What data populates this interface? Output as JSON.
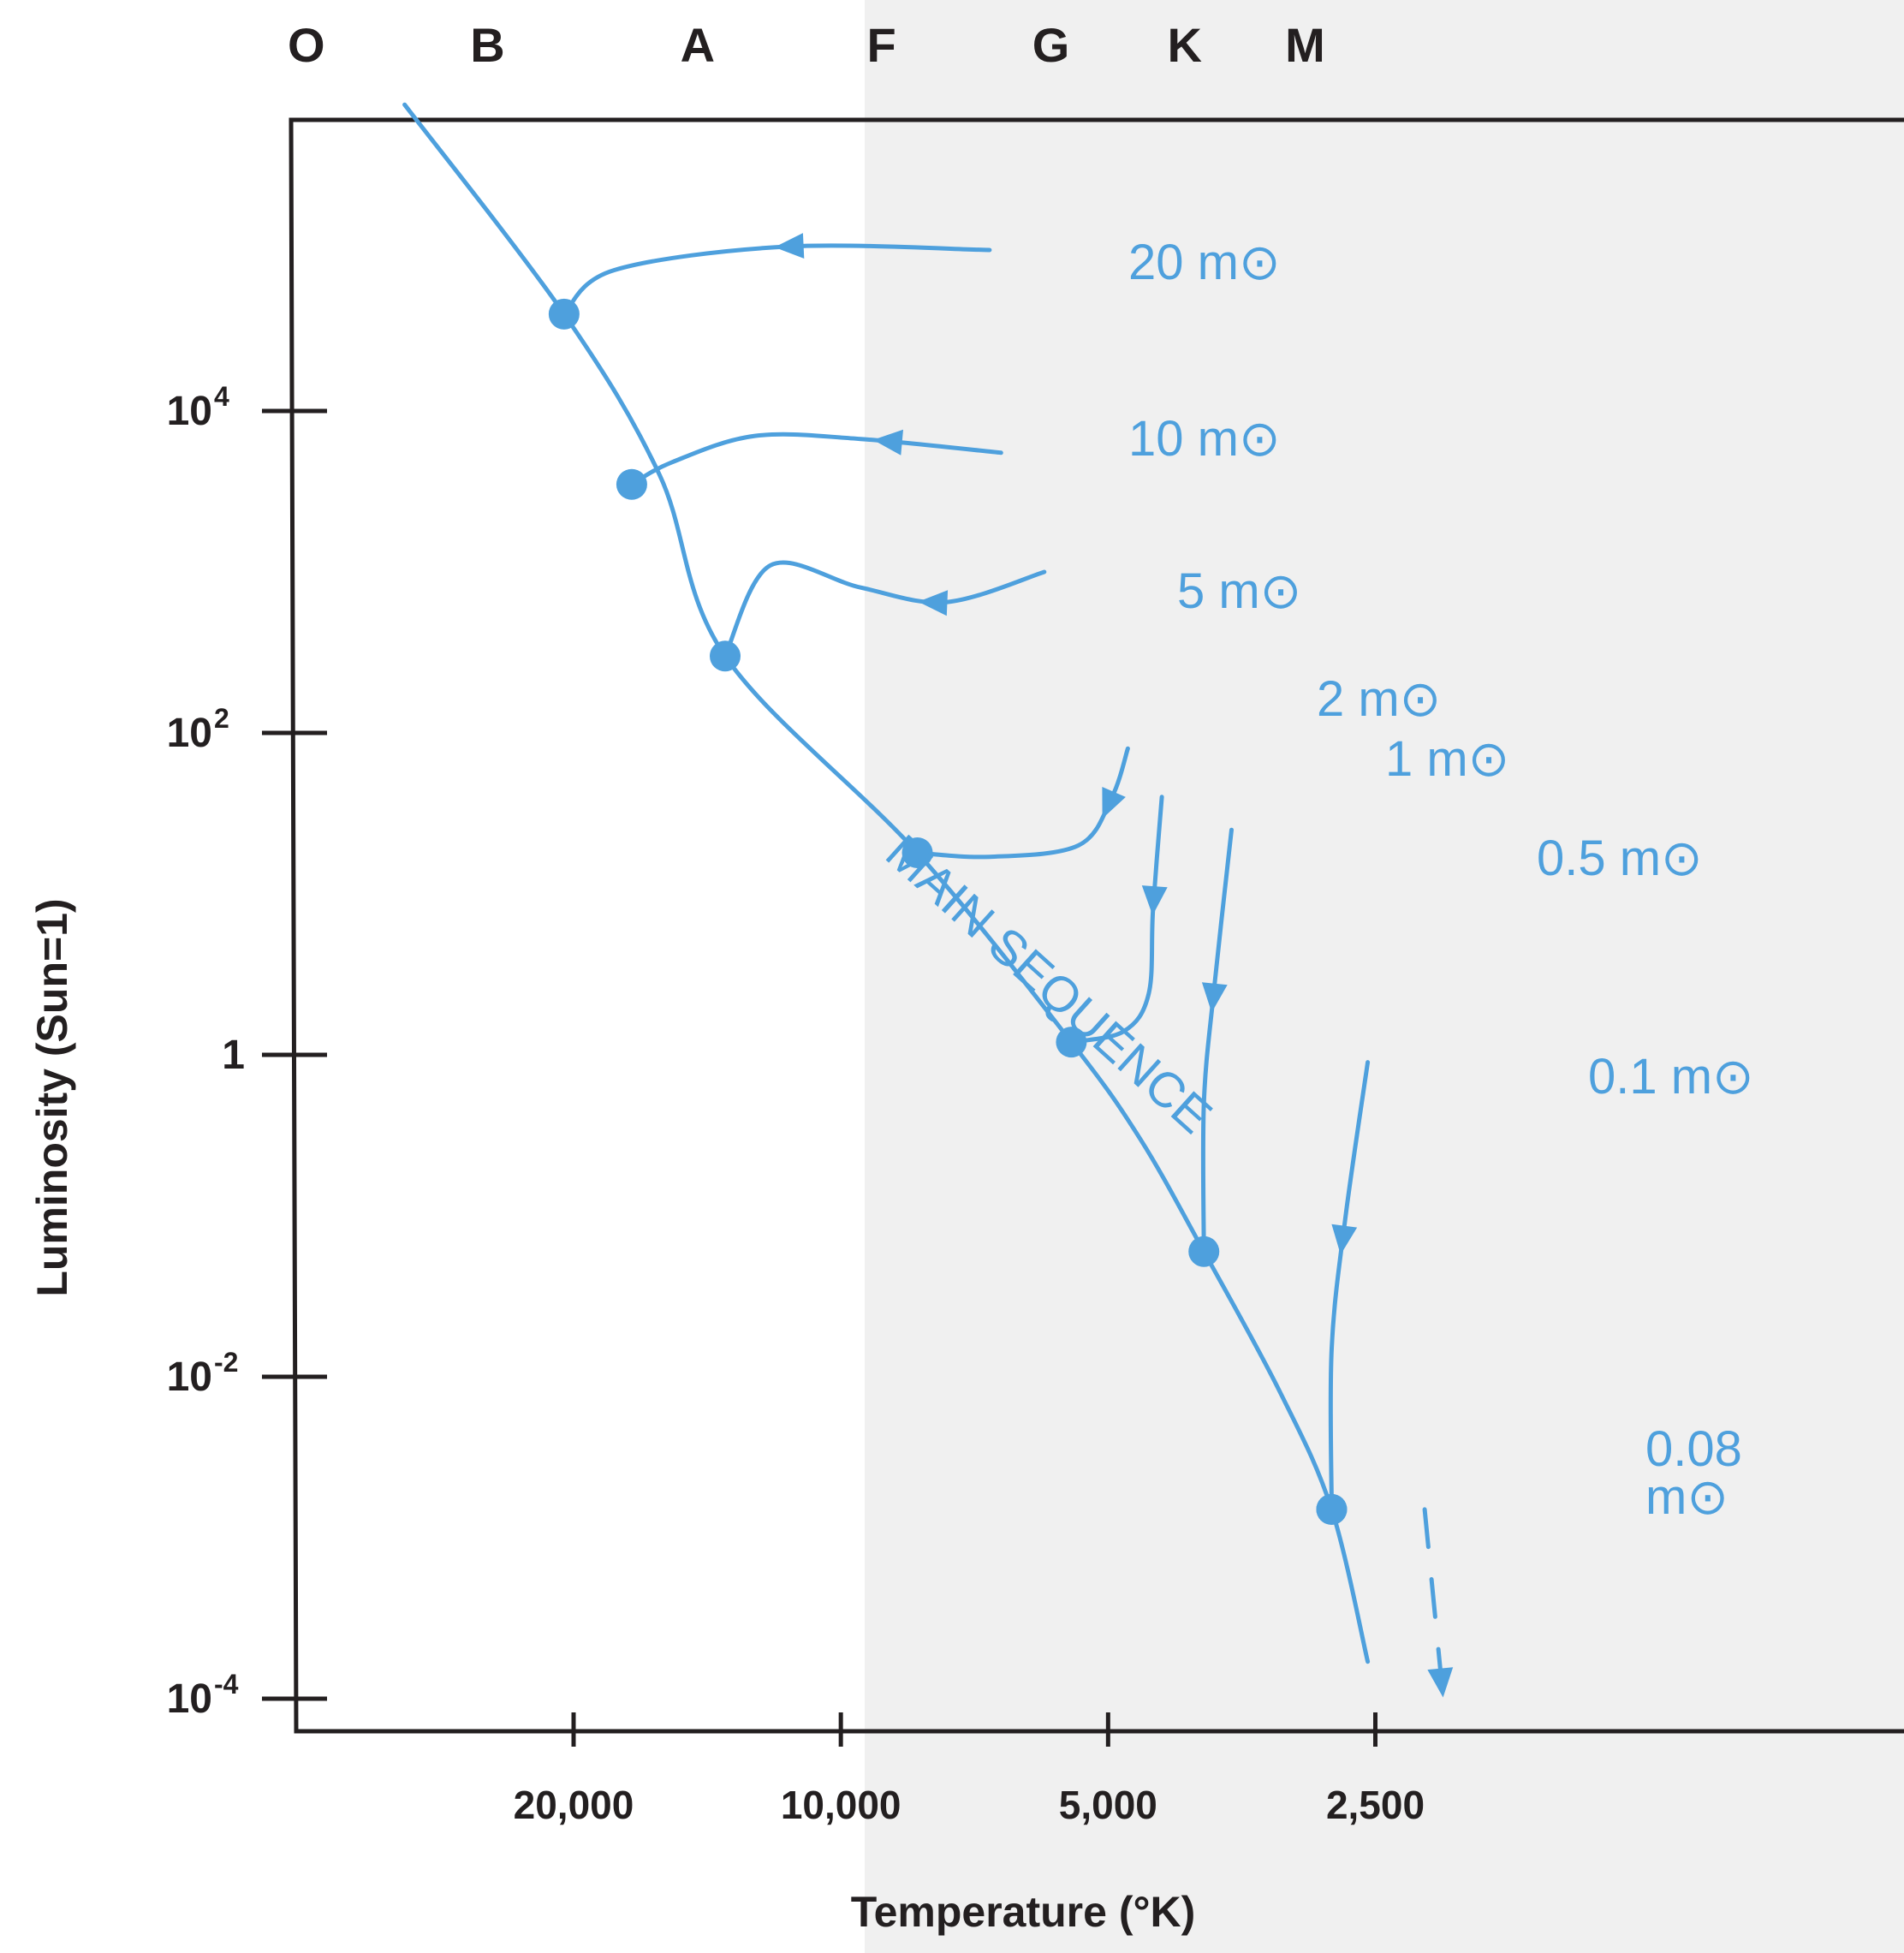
{
  "chart_data": {
    "type": "line",
    "title": "",
    "xlabel": "Temperature (°K)",
    "ylabel": "Luminosity (Sun=1)",
    "x_scale": "log-reversed",
    "y_scale": "log",
    "grid": false,
    "x_ticks": [
      {
        "value": 20000,
        "label": "20,000"
      },
      {
        "value": 10000,
        "label": "10,000"
      },
      {
        "value": 5000,
        "label": "5,000"
      },
      {
        "value": 2500,
        "label": "2,500"
      }
    ],
    "y_ticks": [
      {
        "value": 10000,
        "base": "10",
        "exp": "4"
      },
      {
        "value": 100,
        "base": "10",
        "exp": "2"
      },
      {
        "value": 1,
        "base": "1",
        "exp": ""
      },
      {
        "value": 0.01,
        "base": "10",
        "exp": "-2"
      },
      {
        "value": 0.0001,
        "base": "10",
        "exp": "-4"
      }
    ],
    "spectral_classes": [
      {
        "label": "O",
        "temp": 40000
      },
      {
        "label": "B",
        "temp": 25000
      },
      {
        "label": "A",
        "temp": 14500
      },
      {
        "label": "F",
        "temp": 9000
      },
      {
        "label": "G",
        "temp": 5800
      },
      {
        "label": "K",
        "temp": 4100
      },
      {
        "label": "M",
        "temp": 3000
      }
    ],
    "main_sequence": {
      "label": "MAIN SEQUENCE",
      "points": [
        [
          31000,
          800000
        ],
        [
          20500,
          40000
        ],
        [
          16000,
          4000
        ],
        [
          13500,
          300
        ],
        [
          8200,
          18
        ],
        [
          5500,
          1.2
        ],
        [
          4600,
          0.3
        ],
        [
          3900,
          0.06
        ],
        [
          3200,
          0.008
        ],
        [
          2800,
          0.0015
        ],
        [
          2550,
          0.00017
        ]
      ]
    },
    "series": [
      {
        "mass_label": "20 m⊙",
        "arrival": {
          "temp": 20500,
          "lum": 40000
        },
        "track": [
          [
            6800,
            100000
          ],
          [
            11500,
            105000
          ],
          [
            18000,
            75000
          ],
          [
            20500,
            40000
          ]
        ],
        "arrow_at": 0.45
      },
      {
        "mass_label": "10 m⊙",
        "arrival": {
          "temp": 17200,
          "lum": 3500
        },
        "track": [
          [
            6600,
            5500
          ],
          [
            9500,
            6700
          ],
          [
            12500,
            7000
          ],
          [
            15500,
            4800
          ],
          [
            17200,
            3500
          ]
        ],
        "arrow_at": 0.3
      },
      {
        "mass_label": "5 m⊙",
        "arrival": {
          "temp": 13500,
          "lum": 300
        },
        "track": [
          [
            5900,
            1000
          ],
          [
            7600,
            650
          ],
          [
            9500,
            800
          ],
          [
            12000,
            1100
          ],
          [
            13500,
            300
          ]
        ],
        "arrow_at": 0.3
      },
      {
        "mass_label": "2 m⊙",
        "arrival": {
          "temp": 8200,
          "lum": 18
        },
        "track": [
          [
            4750,
            80
          ],
          [
            4950,
            40
          ],
          [
            5400,
            20
          ],
          [
            6800,
            17
          ],
          [
            8200,
            18
          ]
        ],
        "arrow_at": 0.22
      },
      {
        "mass_label": "1 m⊙",
        "arrival": {
          "temp": 5500,
          "lum": 1.2
        },
        "track": [
          [
            4350,
            40
          ],
          [
            4450,
            8
          ],
          [
            4500,
            2.4
          ],
          [
            4800,
            1.4
          ],
          [
            5500,
            1.2
          ]
        ],
        "arrow_at": 0.35
      },
      {
        "mass_label": "0.5 m⊙",
        "arrival": {
          "temp": 3900,
          "lum": 0.06
        },
        "track": [
          [
            3630,
            25
          ],
          [
            3800,
            2.5
          ],
          [
            3900,
            0.5
          ],
          [
            3900,
            0.06
          ]
        ],
        "arrow_at": 0.4
      },
      {
        "mass_label": "0.1 m⊙",
        "arrival": {
          "temp": 2800,
          "lum": 0.0015
        },
        "track": [
          [
            2550,
            0.9
          ],
          [
            2700,
            0.1
          ],
          [
            2800,
            0.015
          ],
          [
            2800,
            0.0015
          ]
        ],
        "arrow_at": 0.4
      },
      {
        "mass_label": "0.08 m⊙",
        "arrival": {
          "temp": 2100,
          "lum": 0.00011
        },
        "track": [
          [
            2200,
            0.0015
          ],
          [
            2100,
            0.00011
          ]
        ],
        "arrow_at": 0.95,
        "dashed": true
      }
    ],
    "endpoint_label": {
      "line1": "0.08",
      "line2": "m⊙"
    },
    "colors": {
      "curve": "#4ea0dd",
      "axis": "#231f20",
      "background": "#ffffff",
      "shade": "#f0f0f0"
    }
  }
}
